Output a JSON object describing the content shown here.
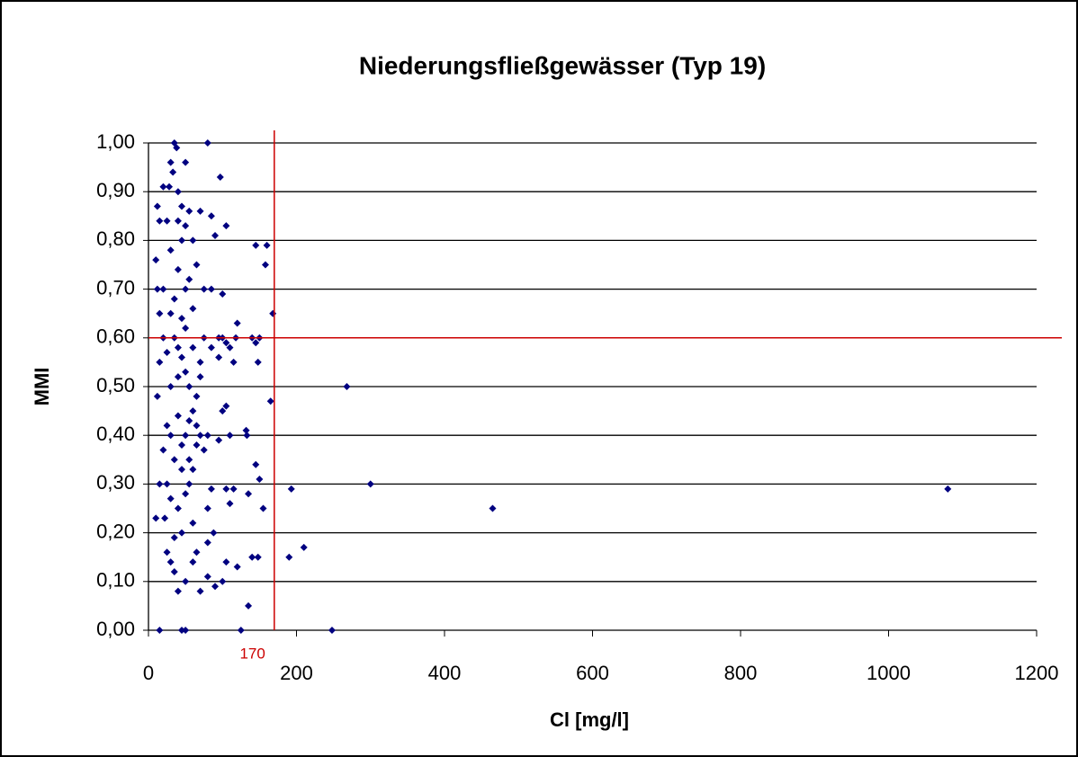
{
  "chart_data": {
    "type": "scatter",
    "title": "Niederungsfließgewässer (Typ 19)",
    "x_label": "Cl [mg/l]",
    "y_label": "MMI",
    "color": "#000080",
    "grid": true,
    "xlim": [
      0,
      1200
    ],
    "xticks": [
      0,
      200,
      400,
      600,
      800,
      1000,
      1200
    ],
    "ylim": [
      0,
      1
    ],
    "yticks": [
      {
        "value": 0,
        "label": "0,00"
      },
      {
        "value": 0.1,
        "label": "0,10"
      },
      {
        "value": 0.2,
        "label": "0,20"
      },
      {
        "value": 0.3,
        "label": "0,30"
      },
      {
        "value": 0.4,
        "label": "0,40"
      },
      {
        "value": 0.5,
        "label": "0,50"
      },
      {
        "value": 0.6,
        "label": "0,60"
      },
      {
        "value": 0.7,
        "label": "0,70"
      },
      {
        "value": 0.8,
        "label": "0,80"
      },
      {
        "value": 0.9,
        "label": "0,90"
      },
      {
        "value": 1,
        "label": "1,00"
      }
    ],
    "vline": {
      "value": 170,
      "label": "170",
      "color": "#cc0000"
    },
    "hline": {
      "value": 0.6,
      "color": "#cc0000"
    },
    "x": [
      268,
      300,
      465,
      1080,
      248,
      193,
      190,
      210,
      165,
      168,
      160,
      158,
      145,
      150,
      155,
      148,
      145,
      140,
      132,
      133,
      135,
      135,
      140,
      148,
      145,
      150,
      120,
      118,
      115,
      110,
      105,
      100,
      97,
      80,
      35,
      38,
      50,
      30,
      33,
      28,
      20,
      12,
      15,
      105,
      100,
      90,
      85,
      70,
      75,
      85,
      95,
      85,
      95,
      100,
      105,
      110,
      95,
      80,
      75,
      85,
      105,
      110,
      115,
      80,
      88,
      80,
      65,
      60,
      105,
      120,
      100,
      90,
      80,
      70,
      50,
      40,
      35,
      30,
      25,
      22,
      15,
      10,
      12,
      15,
      20,
      15,
      10,
      12,
      25,
      45,
      55,
      65,
      60,
      50,
      40,
      30,
      35,
      45,
      55,
      60,
      40,
      30,
      35,
      45,
      55,
      65,
      50,
      40,
      60,
      45,
      35,
      55,
      30,
      40,
      25,
      50,
      60,
      70,
      65,
      25,
      20,
      45,
      35,
      55,
      30,
      40,
      50,
      40,
      45,
      60,
      20,
      25,
      30,
      45,
      50,
      55,
      70,
      70,
      75,
      15,
      45,
      50,
      125,
      65,
      60,
      50,
      40
    ],
    "values": [
      0.5,
      0.3,
      0.25,
      0.29,
      0.0,
      0.29,
      0.15,
      0.17,
      0.47,
      0.65,
      0.79,
      0.75,
      0.79,
      0.31,
      0.25,
      0.55,
      0.59,
      0.6,
      0.41,
      0.4,
      0.28,
      0.05,
      0.15,
      0.15,
      0.34,
      0.6,
      0.63,
      0.6,
      0.55,
      0.58,
      0.59,
      0.6,
      0.93,
      1.0,
      1.0,
      0.99,
      0.96,
      0.96,
      0.94,
      0.91,
      0.91,
      0.87,
      0.84,
      0.83,
      0.69,
      0.81,
      0.85,
      0.86,
      0.7,
      0.7,
      0.6,
      0.58,
      0.56,
      0.45,
      0.46,
      0.4,
      0.39,
      0.4,
      0.37,
      0.29,
      0.29,
      0.26,
      0.29,
      0.25,
      0.2,
      0.18,
      0.16,
      0.14,
      0.14,
      0.13,
      0.1,
      0.09,
      0.11,
      0.08,
      0.1,
      0.08,
      0.12,
      0.14,
      0.16,
      0.23,
      0.3,
      0.23,
      0.48,
      0.55,
      0.6,
      0.65,
      0.76,
      0.7,
      0.84,
      0.8,
      0.86,
      0.75,
      0.66,
      0.7,
      0.74,
      0.78,
      0.6,
      0.56,
      0.5,
      0.45,
      0.44,
      0.4,
      0.35,
      0.33,
      0.35,
      0.38,
      0.28,
      0.25,
      0.22,
      0.2,
      0.19,
      0.3,
      0.5,
      0.52,
      0.57,
      0.62,
      0.58,
      0.52,
      0.48,
      0.42,
      0.37,
      0.64,
      0.68,
      0.72,
      0.65,
      0.84,
      0.83,
      0.9,
      0.87,
      0.8,
      0.7,
      0.3,
      0.27,
      0.38,
      0.4,
      0.43,
      0.4,
      0.55,
      0.6,
      0.0,
      0.0,
      0.0,
      0.0,
      0.42,
      0.33,
      0.53,
      0.58
    ]
  }
}
